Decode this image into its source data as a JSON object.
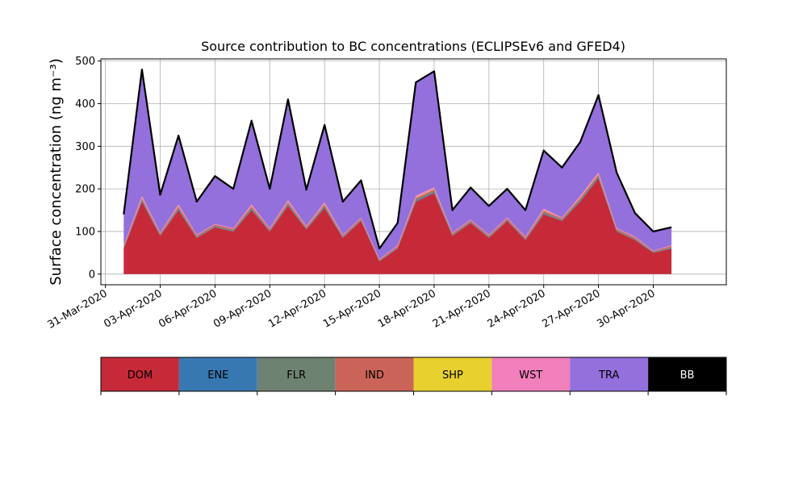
{
  "chart_data": {
    "type": "area",
    "stacked": true,
    "title": "Source contribution to BC concentrations (ECLIPSEv6 and GFED4)",
    "ylabel": "Surface concentration (ng m⁻³)",
    "xlabel": "",
    "ylim": [
      -25,
      505
    ],
    "xlim": [
      "2020-03-30T18:00",
      "2020-05-04T00:00"
    ],
    "grid": true,
    "yticks": [
      0,
      100,
      200,
      300,
      400,
      500
    ],
    "xticks": [
      "31-Mar-2020",
      "03-Apr-2020",
      "06-Apr-2020",
      "09-Apr-2020",
      "12-Apr-2020",
      "15-Apr-2020",
      "18-Apr-2020",
      "21-Apr-2020",
      "24-Apr-2020",
      "27-Apr-2020",
      "30-Apr-2020"
    ],
    "x": [
      "2020-04-01",
      "2020-04-02",
      "2020-04-03",
      "2020-04-04",
      "2020-04-05",
      "2020-04-06",
      "2020-04-07",
      "2020-04-08",
      "2020-04-09",
      "2020-04-10",
      "2020-04-11",
      "2020-04-12",
      "2020-04-13",
      "2020-04-14",
      "2020-04-15",
      "2020-04-16",
      "2020-04-17",
      "2020-04-18",
      "2020-04-19",
      "2020-04-20",
      "2020-04-21",
      "2020-04-22",
      "2020-04-23",
      "2020-04-24",
      "2020-04-25",
      "2020-04-26",
      "2020-04-27",
      "2020-04-28",
      "2020-04-29",
      "2020-04-30",
      "2020-05-01"
    ],
    "series": [
      {
        "name": "DOM",
        "color": "#c62a38",
        "values": [
          60,
          170,
          90,
          150,
          85,
          110,
          100,
          150,
          100,
          160,
          105,
          155,
          85,
          125,
          30,
          60,
          170,
          190,
          90,
          120,
          85,
          125,
          80,
          140,
          125,
          170,
          225,
          100,
          80,
          50,
          60
        ]
      },
      {
        "name": "ENE",
        "color": "#3878b2",
        "values": [
          1,
          2,
          1,
          2,
          1,
          1,
          1,
          2,
          1,
          2,
          1,
          2,
          1,
          1,
          1,
          1,
          2,
          2,
          1,
          1,
          1,
          1,
          1,
          2,
          1,
          2,
          2,
          1,
          1,
          1,
          1
        ]
      },
      {
        "name": "FLR",
        "color": "#6e8272",
        "values": [
          2,
          3,
          2,
          3,
          2,
          2,
          2,
          3,
          2,
          3,
          2,
          3,
          2,
          2,
          1,
          2,
          3,
          3,
          2,
          2,
          2,
          2,
          2,
          3,
          2,
          3,
          3,
          2,
          2,
          1,
          2
        ]
      },
      {
        "name": "IND",
        "color": "#ca6459",
        "values": [
          3,
          4,
          3,
          4,
          3,
          3,
          3,
          4,
          3,
          4,
          3,
          4,
          3,
          3,
          2,
          3,
          4,
          4,
          3,
          3,
          3,
          3,
          3,
          4,
          3,
          4,
          4,
          3,
          3,
          2,
          3
        ]
      },
      {
        "name": "SHP",
        "color": "#e8d02e",
        "values": [
          0,
          1,
          0,
          1,
          0,
          0,
          0,
          1,
          0,
          1,
          0,
          1,
          0,
          0,
          0,
          0,
          1,
          1,
          0,
          0,
          0,
          0,
          0,
          1,
          0,
          1,
          1,
          0,
          0,
          0,
          0
        ]
      },
      {
        "name": "WST",
        "color": "#f07fbc",
        "values": [
          2,
          4,
          2,
          4,
          2,
          2,
          2,
          4,
          2,
          4,
          2,
          4,
          2,
          2,
          1,
          2,
          4,
          4,
          2,
          2,
          2,
          2,
          2,
          4,
          2,
          4,
          4,
          2,
          2,
          1,
          2
        ]
      },
      {
        "name": "TRA",
        "color": "#9370db",
        "values": [
          72,
          296,
          88,
          161,
          77,
          112,
          92,
          196,
          92,
          236,
          85,
          181,
          77,
          87,
          25,
          52,
          266,
          272,
          52,
          75,
          67,
          67,
          62,
          136,
          117,
          126,
          181,
          130,
          55,
          45,
          42
        ]
      },
      {
        "name": "BB",
        "color": "#000000",
        "values": [
          0,
          0,
          0,
          0,
          0,
          0,
          0,
          0,
          0,
          0,
          0,
          0,
          0,
          0,
          0,
          0,
          0,
          0,
          0,
          0,
          0,
          0,
          0,
          0,
          0,
          0,
          0,
          0,
          0,
          0,
          0
        ]
      }
    ],
    "legend": {
      "placement": "bottom",
      "entries": [
        {
          "label": "DOM",
          "color": "#c62a38",
          "text_color": "#000000"
        },
        {
          "label": "ENE",
          "color": "#3878b2",
          "text_color": "#000000"
        },
        {
          "label": "FLR",
          "color": "#6e8272",
          "text_color": "#000000"
        },
        {
          "label": "IND",
          "color": "#ca6459",
          "text_color": "#000000"
        },
        {
          "label": "SHP",
          "color": "#e8d02e",
          "text_color": "#000000"
        },
        {
          "label": "WST",
          "color": "#f07fbc",
          "text_color": "#000000"
        },
        {
          "label": "TRA",
          "color": "#9370db",
          "text_color": "#000000"
        },
        {
          "label": "BB",
          "color": "#000000",
          "text_color": "#ffffff"
        }
      ]
    }
  }
}
